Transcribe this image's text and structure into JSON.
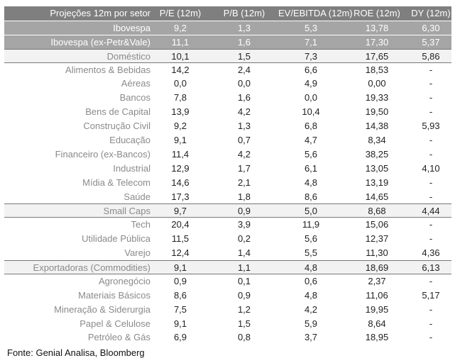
{
  "table": {
    "header": [
      "Projeções 12m por setor",
      "P/E (12m)",
      "P/B (12m)",
      "EV/EBITDA (12m)",
      "ROE (12m)",
      "DY (12m)"
    ],
    "index_rows": [
      [
        "Ibovespa",
        "9,2",
        "1,3",
        "5,3",
        "13,78",
        "6,30"
      ],
      [
        "Ibovespa (ex-Petr&Vale)",
        "11,1",
        "1,6",
        "7,1",
        "17,30",
        "5,37"
      ]
    ],
    "groups": [
      {
        "row": [
          "Doméstico",
          "10,1",
          "1,5",
          "7,3",
          "17,65",
          "5,86"
        ],
        "rows": [
          [
            "Alimentos & Bebidas",
            "14,2",
            "2,4",
            "6,6",
            "18,53",
            "-"
          ],
          [
            "Aéreas",
            "0,0",
            "0,0",
            "4,9",
            "0,00",
            "-"
          ],
          [
            "Bancos",
            "7,8",
            "1,6",
            "0,0",
            "19,33",
            "-"
          ],
          [
            "Bens de Capital",
            "13,9",
            "4,2",
            "10,4",
            "19,50",
            "-"
          ],
          [
            "Construção Civil",
            "9,2",
            "1,3",
            "6,8",
            "14,38",
            "5,93"
          ],
          [
            "Educação",
            "9,1",
            "0,7",
            "4,7",
            "8,34",
            "-"
          ],
          [
            "Financeiro (ex-Bancos)",
            "11,4",
            "4,2",
            "5,6",
            "38,25",
            "-"
          ],
          [
            "Industrial",
            "12,9",
            "1,7",
            "6,1",
            "13,05",
            "4,10"
          ],
          [
            "Mídia & Telecom",
            "14,6",
            "2,1",
            "4,8",
            "13,19",
            "-"
          ],
          [
            "Saúde",
            "17,3",
            "1,8",
            "8,6",
            "14,65",
            "-"
          ]
        ]
      },
      {
        "row": [
          "Small Caps",
          "9,7",
          "0,9",
          "5,0",
          "8,68",
          "4,44"
        ],
        "rows": [
          [
            "Tech",
            "20,4",
            "3,9",
            "11,9",
            "15,06",
            "-"
          ],
          [
            "Utilidade Pública",
            "11,5",
            "0,2",
            "5,6",
            "12,37",
            "-"
          ],
          [
            "Varejo",
            "12,4",
            "1,4",
            "5,5",
            "11,30",
            "4,36"
          ]
        ]
      },
      {
        "row": [
          "Exportadoras (Commodities)",
          "9,1",
          "1,1",
          "4,8",
          "18,69",
          "6,13"
        ],
        "rows": [
          [
            "Agronegócio",
            "0,9",
            "0,1",
            "0,6",
            "2,37",
            "-"
          ],
          [
            "Materiais Básicos",
            "8,6",
            "0,9",
            "4,8",
            "11,06",
            "5,17"
          ],
          [
            "Mineração & Siderurgia",
            "7,5",
            "1,2",
            "4,2",
            "19,95",
            "-"
          ],
          [
            "Papel & Celulose",
            "9,1",
            "1,5",
            "5,9",
            "8,64",
            "-"
          ],
          [
            "Petróleo & Gás",
            "6,9",
            "0,8",
            "3,7",
            "18,95",
            "-"
          ]
        ]
      }
    ]
  },
  "source": "Fonte: Genial Analisa, Bloomberg"
}
